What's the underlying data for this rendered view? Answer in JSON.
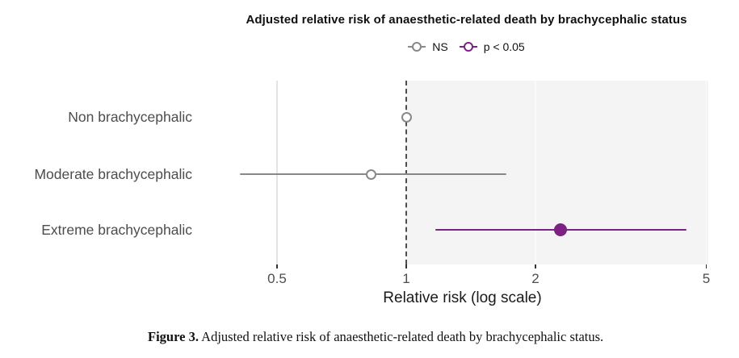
{
  "title": "Adjusted relative risk of anaesthetic-related death by brachycephalic status",
  "legend": {
    "items": [
      {
        "label": "NS",
        "color": "#888888",
        "filled": false
      },
      {
        "label": "p < 0.05",
        "color": "#7c2282",
        "filled": false
      }
    ]
  },
  "chart_data": {
    "type": "scatter",
    "subtype": "forest-plot",
    "title": "Adjusted relative risk of anaesthetic-related death by brachycephalic status",
    "xlabel": "Relative risk (log scale)",
    "x_scale": "log",
    "x_ticks": [
      0.5,
      1,
      2,
      5
    ],
    "xlim": [
      0.36,
      5.0
    ],
    "reference_line_x": 1,
    "shaded_region_x": [
      1,
      5.0
    ],
    "grid": "on",
    "legend_position": "top-center",
    "categories": [
      "Non brachycephalic",
      "Moderate brachycephalic",
      "Extreme brachycephalic"
    ],
    "points": [
      {
        "category": "Non brachycephalic",
        "rr": 1.0,
        "ci_low": 1.0,
        "ci_high": 1.0,
        "significant": false,
        "color": "#888888",
        "marker": "open-circle"
      },
      {
        "category": "Moderate brachycephalic",
        "rr": 0.83,
        "ci_low": 0.41,
        "ci_high": 1.71,
        "significant": false,
        "color": "#888888",
        "marker": "open-circle"
      },
      {
        "category": "Extreme brachycephalic",
        "rr": 2.29,
        "ci_low": 1.17,
        "ci_high": 4.5,
        "significant": true,
        "color": "#7c2282",
        "marker": "filled-circle"
      }
    ],
    "colors": {
      "ns": "#888888",
      "significant": "#7c2282",
      "shade": "#f4f4f4",
      "grid_on_white": "#e4e4e4",
      "grid_on_shade": "#fafafa",
      "reference_line": "#4d4d4d",
      "tick_text": "#4d4d4d"
    }
  },
  "caption": {
    "label": "Figure 3.",
    "text": " Adjusted relative risk of anaesthetic-related death by brachycephalic status."
  }
}
